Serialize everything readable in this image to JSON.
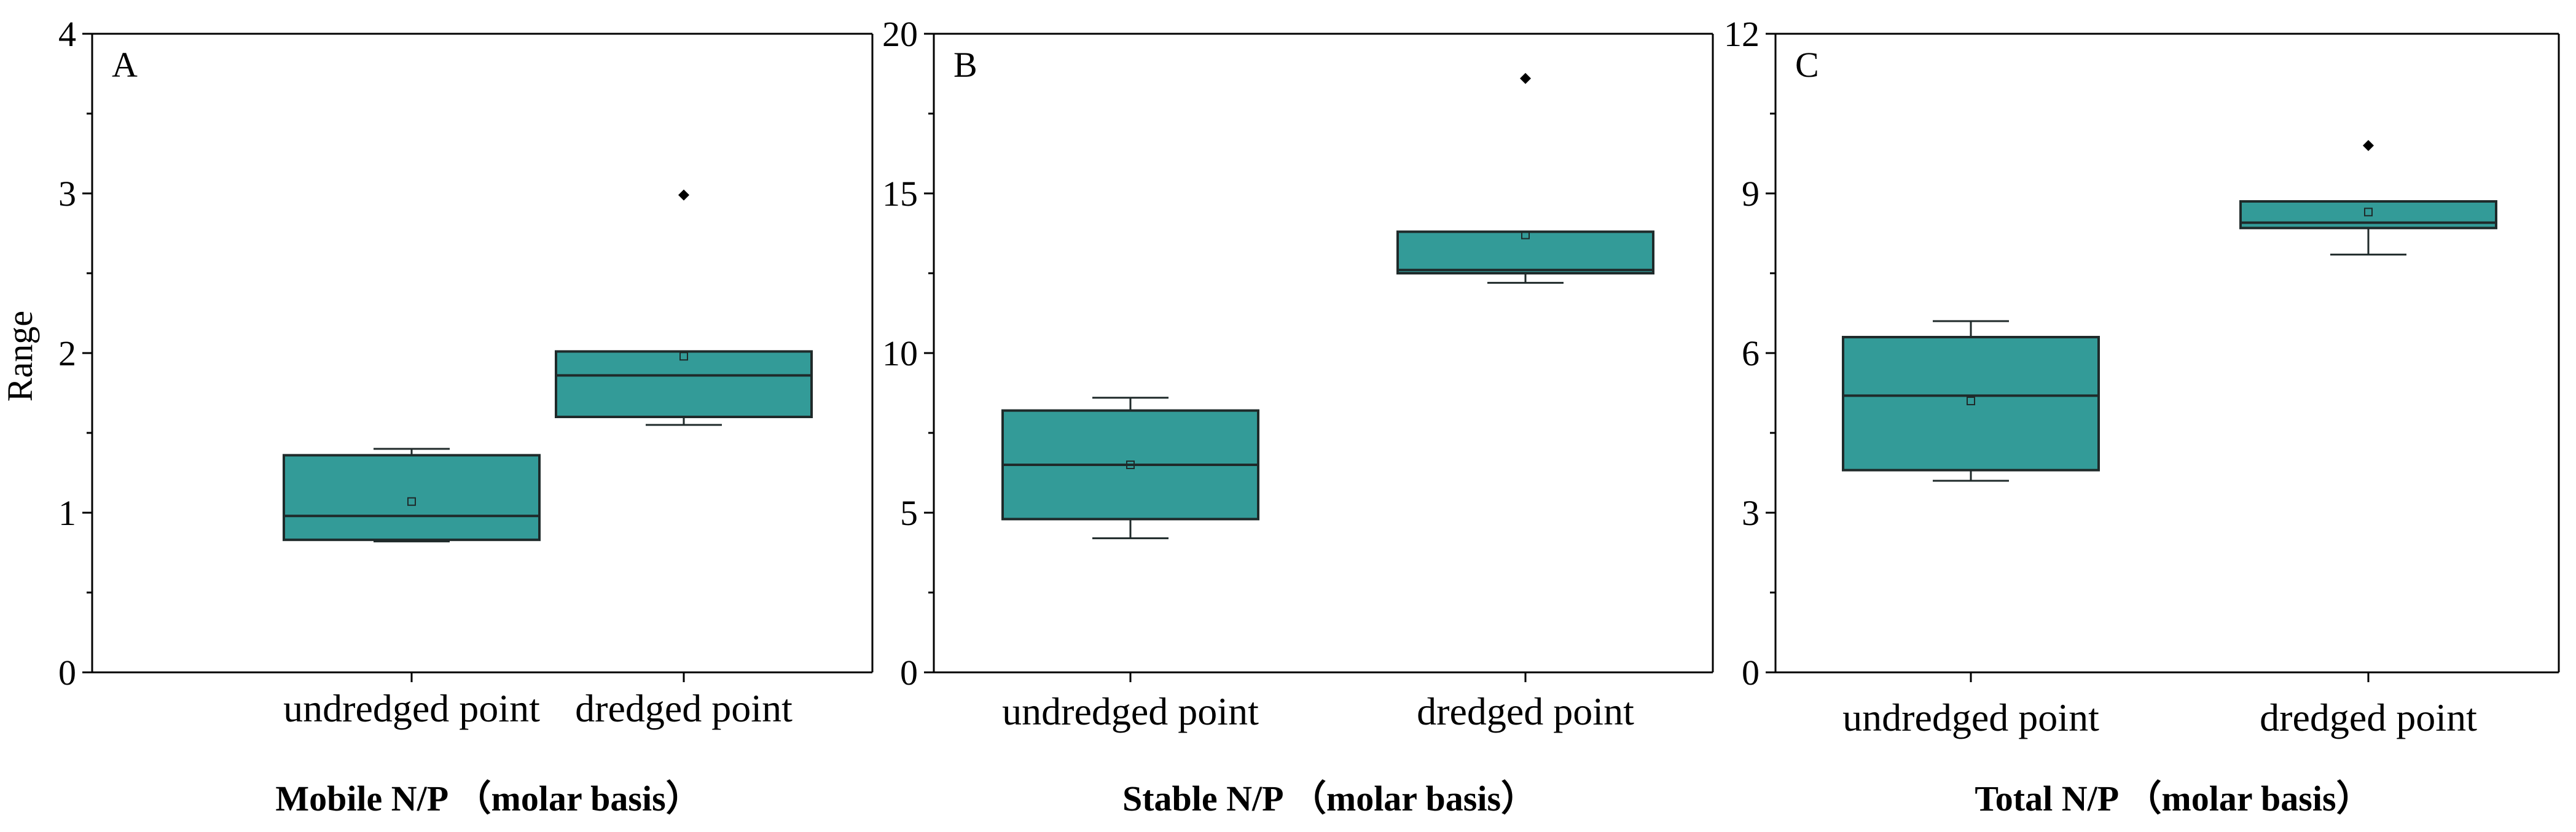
{
  "figure": {
    "ylabel": "Range"
  },
  "chart_data": [
    {
      "type": "box",
      "panel": "A",
      "xlabel": "Mobile N/P （molar basis）",
      "ylabel": "Range",
      "ylim": [
        0,
        4
      ],
      "yticks": [
        0,
        1,
        2,
        3,
        4
      ],
      "categories": [
        "undredged point",
        "dredged point"
      ],
      "boxes": [
        {
          "category": "undredged point",
          "whisker_low": 0.82,
          "q1": 0.83,
          "median": 0.98,
          "q3": 1.36,
          "whisker_high": 1.4,
          "mean": 1.07,
          "outliers": []
        },
        {
          "category": "dredged point",
          "whisker_low": 1.55,
          "q1": 1.6,
          "median": 1.86,
          "q3": 2.01,
          "whisker_high": 2.01,
          "mean": 1.98,
          "outliers": [
            2.99
          ]
        }
      ],
      "grid": false
    },
    {
      "type": "box",
      "panel": "B",
      "xlabel": "Stable N/P （molar basis）",
      "ylabel": "",
      "ylim": [
        0,
        20
      ],
      "yticks": [
        0,
        5,
        10,
        15,
        20
      ],
      "categories": [
        "undredged point",
        "dredged point"
      ],
      "boxes": [
        {
          "category": "undredged point",
          "whisker_low": 4.2,
          "q1": 4.8,
          "median": 6.5,
          "q3": 8.2,
          "whisker_high": 8.6,
          "mean": 6.5,
          "outliers": []
        },
        {
          "category": "dredged point",
          "whisker_low": 12.2,
          "q1": 12.5,
          "median": 12.6,
          "q3": 13.8,
          "whisker_high": 13.8,
          "mean": 13.7,
          "outliers": [
            18.6
          ]
        }
      ],
      "grid": false
    },
    {
      "type": "box",
      "panel": "C",
      "xlabel": "Total N/P （molar basis）",
      "ylabel": "",
      "ylim": [
        0,
        12
      ],
      "yticks": [
        0,
        3,
        6,
        9,
        12
      ],
      "categories": [
        "undredged point",
        "dredged point"
      ],
      "boxes": [
        {
          "category": "undredged point",
          "whisker_low": 3.6,
          "q1": 3.8,
          "median": 5.2,
          "q3": 6.3,
          "whisker_high": 6.6,
          "mean": 5.1,
          "outliers": []
        },
        {
          "category": "dredged point",
          "whisker_low": 7.85,
          "q1": 8.35,
          "median": 8.45,
          "q3": 8.85,
          "whisker_high": 8.85,
          "mean": 8.65,
          "outliers": [
            9.9
          ]
        }
      ],
      "grid": false
    }
  ],
  "colors": {
    "box_fill": "#339b98",
    "box_stroke": "#1f2a2a",
    "axis": "#000000"
  }
}
